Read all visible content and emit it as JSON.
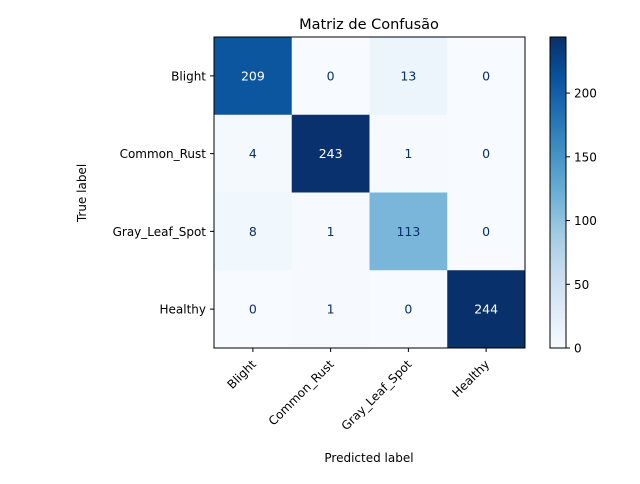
{
  "chart_data": {
    "type": "heatmap",
    "title": "Matriz de Confusão",
    "xlabel": "Predicted label",
    "ylabel": "True label",
    "row_labels": [
      "Blight",
      "Common_Rust",
      "Gray_Leaf_Spot",
      "Healthy"
    ],
    "col_labels": [
      "Blight",
      "Common_Rust",
      "Gray_Leaf_Spot",
      "Healthy"
    ],
    "values": [
      [
        209,
        0,
        13,
        0
      ],
      [
        4,
        243,
        1,
        0
      ],
      [
        8,
        1,
        113,
        0
      ],
      [
        0,
        1,
        0,
        244
      ]
    ],
    "colormap": "Blues",
    "vmin": 0,
    "vmax": 244,
    "colorbar_ticks": [
      0,
      50,
      100,
      150,
      200
    ],
    "colorbar_tick_labels": [
      "0",
      "50",
      "100",
      "150",
      "200"
    ],
    "grid": false
  }
}
